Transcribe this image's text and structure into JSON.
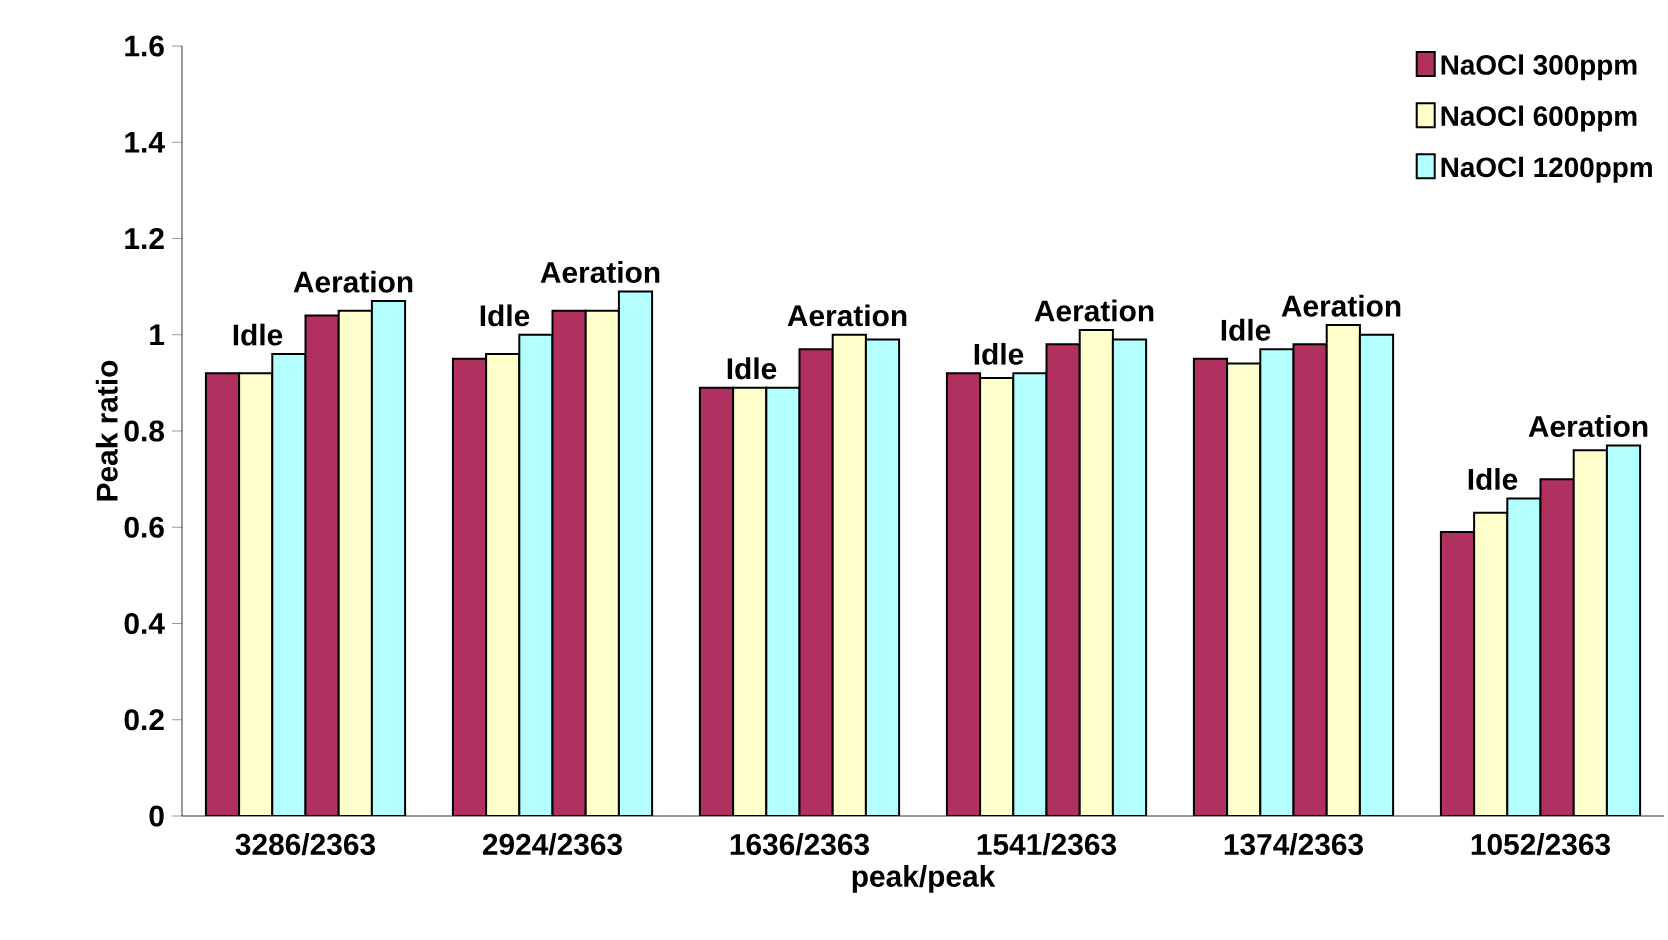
{
  "chart_data": {
    "type": "bar",
    "xlabel": "peak/peak",
    "ylabel": "Peak ratio",
    "categories": [
      "3286/2363",
      "2924/2363",
      "1636/2363",
      "1541/2363",
      "1374/2363",
      "1052/2363"
    ],
    "series": [
      {
        "name": "NaOCl 300ppm",
        "color": "#b03060",
        "values": [
          0.92,
          0.95,
          0.89,
          0.92,
          0.95,
          0.59
        ]
      },
      {
        "name": "NaOCl 600ppm",
        "color": "#ffffcc",
        "values": [
          0.92,
          0.96,
          0.89,
          0.91,
          0.94,
          0.63
        ]
      },
      {
        "name": "NaOCl 1200ppm",
        "color": "#b3ffff",
        "values": [
          0.96,
          1.0,
          0.89,
          0.92,
          0.97,
          0.66
        ]
      },
      {
        "color": "#b03060",
        "values": [
          1.04,
          1.05,
          0.97,
          0.98,
          0.98,
          0.7
        ]
      },
      {
        "color": "#ffffcc",
        "values": [
          1.05,
          1.05,
          1.0,
          1.01,
          1.02,
          0.76
        ]
      },
      {
        "color": "#b3ffff",
        "values": [
          1.07,
          1.09,
          0.99,
          0.99,
          1.0,
          0.77
        ]
      }
    ],
    "ylim": [
      0,
      1.6
    ],
    "yticks": [
      0,
      0.2,
      0.4,
      0.6,
      0.8,
      1,
      1.2,
      1.4,
      1.6
    ],
    "grid": false,
    "legend": "top right",
    "annotations": [
      "Idle",
      "Aeration",
      "Idle",
      "Aeration",
      "Idle",
      "Aeration",
      "Idle",
      "Aeration",
      "Idle",
      "Aeration",
      "Idle",
      "Aeration"
    ]
  }
}
